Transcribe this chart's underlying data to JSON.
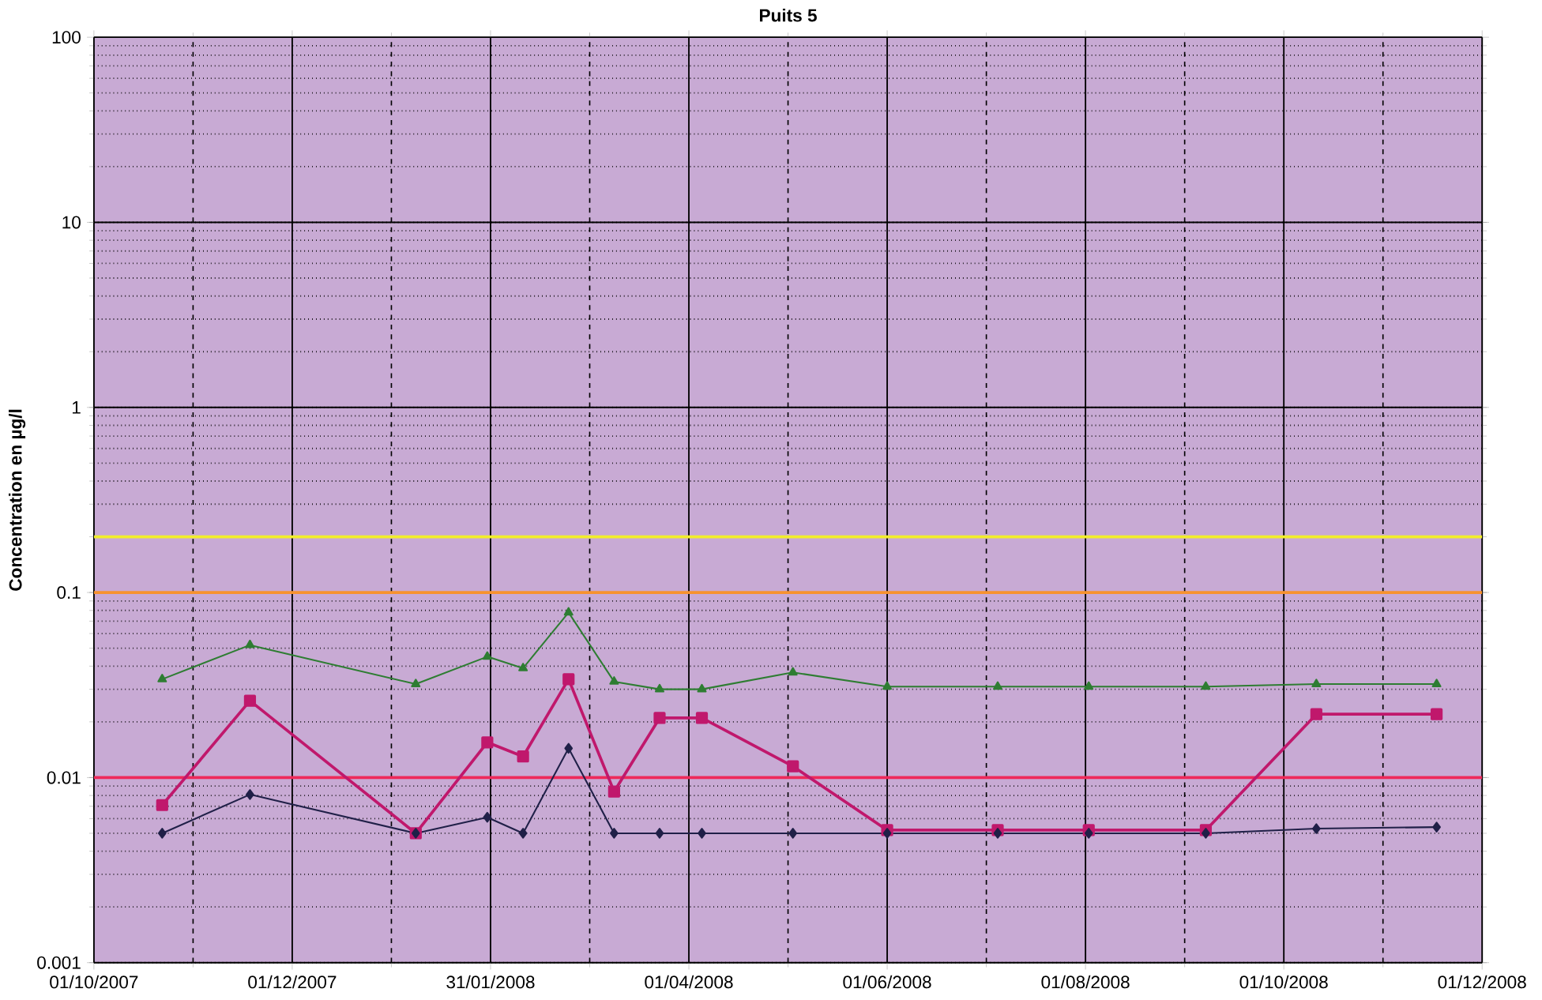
{
  "chart_data": {
    "type": "line",
    "title": "Puits 5",
    "ylabel": "Concentration en µg/l",
    "log": "y",
    "grid": true,
    "line_style": "solid",
    "xlim": [
      "2007-10-01",
      "2008-12-01"
    ],
    "xticks": [
      {
        "value": "2007-10-01",
        "label": "01/10/2007"
      },
      {
        "value": "2007-12-01",
        "label": "01/12/2007"
      },
      {
        "value": "2008-01-31",
        "label": "31/01/2008"
      },
      {
        "value": "2008-04-01",
        "label": "01/04/2008"
      },
      {
        "value": "2008-06-01",
        "label": "01/06/2008"
      },
      {
        "value": "2008-08-01",
        "label": "01/08/2008"
      },
      {
        "value": "2008-10-01",
        "label": "01/10/2008"
      },
      {
        "value": "2008-12-01",
        "label": "01/12/2008"
      }
    ],
    "ylim": [
      0.001,
      100
    ],
    "yticks": [
      0.001,
      0.01,
      0.1,
      1,
      10,
      100
    ],
    "x": [
      "2007-10-22",
      "2007-11-18",
      "2008-01-08",
      "2008-01-30",
      "2008-02-10",
      "2008-02-24",
      "2008-03-09",
      "2008-03-23",
      "2008-04-05",
      "2008-05-03",
      "2008-06-01",
      "2008-07-05",
      "2008-08-02",
      "2008-09-07",
      "2008-10-11",
      "2008-11-17"
    ],
    "series": [
      {
        "color": "#2e7d32",
        "marker": "triangle",
        "values": [
          0.034,
          0.052,
          0.032,
          0.045,
          0.039,
          0.078,
          0.033,
          0.03,
          0.03,
          0.037,
          0.031,
          0.031,
          0.031,
          0.031,
          0.032,
          0.032
        ]
      },
      {
        "color": "#c0186c",
        "marker": "square",
        "values": [
          0.0071,
          0.026,
          0.005,
          0.0155,
          0.013,
          0.034,
          0.0084,
          0.021,
          0.021,
          0.0115,
          0.0052,
          0.0052,
          0.0052,
          0.0052,
          0.022,
          0.022
        ]
      },
      {
        "color": "#202048",
        "marker": "diamond",
        "values": [
          0.005,
          0.0081,
          0.005,
          0.0061,
          0.005,
          0.0144,
          0.005,
          0.005,
          0.005,
          0.005,
          0.005,
          0.005,
          0.005,
          0.005,
          0.0053,
          0.0054
        ]
      }
    ],
    "ref_lines": [
      {
        "axis": "y",
        "value": 0.2,
        "color": "#f2ee2a"
      },
      {
        "axis": "y",
        "value": 0.1,
        "color": "#f7922e"
      },
      {
        "axis": "y",
        "value": 0.01,
        "color": "#ee2a5a"
      }
    ]
  }
}
